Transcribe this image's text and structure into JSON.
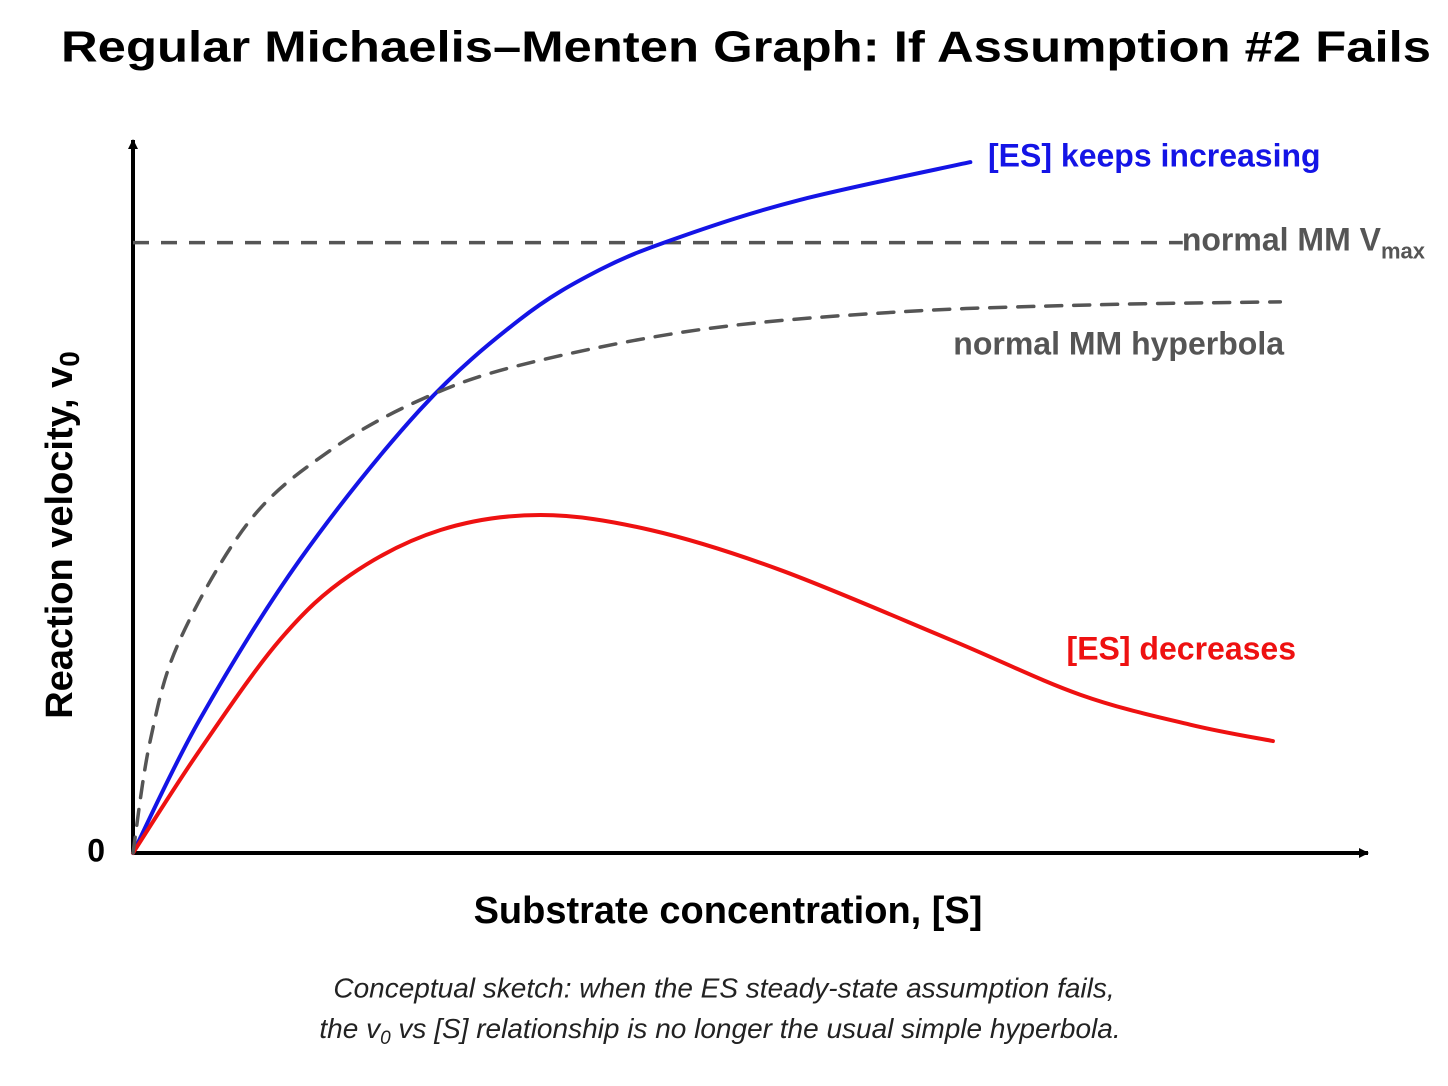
{
  "chart_data": {
    "type": "line",
    "title": "Regular Michaelis–Menten Graph: If Assumption #2 Fails",
    "x_label": "Substrate concentration, [S]",
    "y_label": {
      "text": "Reaction velocity, v",
      "subscript": "0"
    },
    "xlim": [
      0,
      100
    ],
    "ylim": [
      0,
      100
    ],
    "yticks": [
      0
    ],
    "grid": false,
    "series": [
      {
        "name": "[ES] keeps increasing",
        "color": "#1414e6",
        "dashed": false,
        "x": [
          0,
          5.4,
          13.5,
          23.2,
          31.3,
          37.8,
          44.3,
          54.0,
          67.8
        ],
        "values": [
          0,
          18.7,
          41.1,
          62.1,
          74.8,
          81.8,
          86.4,
          91.6,
          96.9
        ]
      },
      {
        "name": "[ES] decreases",
        "color": "#ee1111",
        "dashed": false,
        "x": [
          0,
          5.4,
          11.9,
          17.6,
          24.9,
          33.0,
          41.9,
          52.4,
          66.2,
          76.7,
          85.6,
          92.3
        ],
        "values": [
          0,
          14.4,
          29.9,
          39.0,
          45.3,
          47.4,
          45.3,
          39.7,
          29.9,
          22.2,
          18.0,
          15.7
        ]
      },
      {
        "name": "normal MM hyperbola",
        "color": "#555555",
        "dashed": true,
        "x": [
          0,
          1.4,
          3.8,
          9.5,
          16.0,
          23.2,
          31.3,
          45.9,
          62.1,
          78.3,
          92.9
        ],
        "values": [
          0,
          15.8,
          29.9,
          46.7,
          56.5,
          63.5,
          68.4,
          73.4,
          75.9,
          76.9,
          77.3
        ]
      }
    ],
    "vmax_line": {
      "value": 85.6,
      "x_end": 85,
      "color": "#555555",
      "label": {
        "text": "normal MM V",
        "subscript": "max"
      }
    },
    "caption": [
      {
        "text": "Conceptual sketch: when the ES steady-state assumption fails,"
      },
      {
        "text": "the v",
        "subscript": "0",
        "rest": "  vs [S] relationship is no longer the usual simple hyperbola."
      }
    ]
  }
}
